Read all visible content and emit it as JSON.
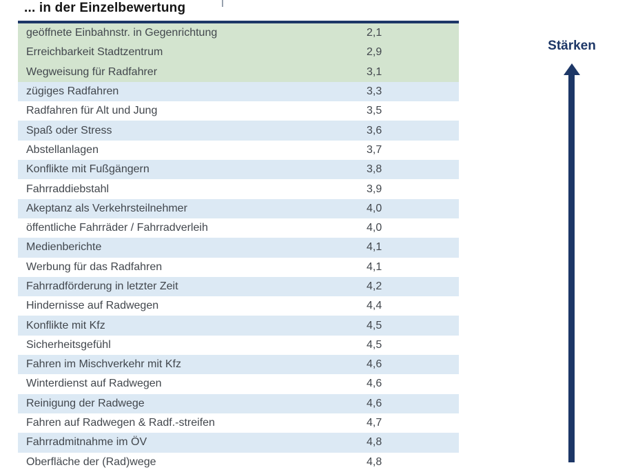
{
  "title": "... in der Einzelbewertung",
  "side_label": "Stärken",
  "colors": {
    "navy": "#1d3767",
    "green_row": "#d3e4cf",
    "blue_row": "#dce9f4",
    "white_row": "#ffffff",
    "row_text": "#42474d",
    "title_text": "#141414"
  },
  "table": {
    "rows": [
      {
        "label": "geöffnete Einbahnstr. in Gegenrichtung",
        "value": "2,1",
        "bg": "green"
      },
      {
        "label": "Erreichbarkeit Stadtzentrum",
        "value": "2,9",
        "bg": "green"
      },
      {
        "label": "Wegweisung für Radfahrer",
        "value": "3,1",
        "bg": "green"
      },
      {
        "label": "zügiges Radfahren",
        "value": "3,3",
        "bg": "blue"
      },
      {
        "label": "Radfahren für Alt und Jung",
        "value": "3,5",
        "bg": "white"
      },
      {
        "label": "Spaß oder Stress",
        "value": "3,6",
        "bg": "blue"
      },
      {
        "label": "Abstellanlagen",
        "value": "3,7",
        "bg": "white"
      },
      {
        "label": "Konflikte mit Fußgängern",
        "value": "3,8",
        "bg": "blue"
      },
      {
        "label": "Fahrraddiebstahl",
        "value": "3,9",
        "bg": "white"
      },
      {
        "label": "Akeptanz als Verkehrsteilnehmer",
        "value": "4,0",
        "bg": "blue"
      },
      {
        "label": "öffentliche Fahrräder / Fahrradverleih",
        "value": "4,0",
        "bg": "white"
      },
      {
        "label": "Medienberichte",
        "value": "4,1",
        "bg": "blue"
      },
      {
        "label": "Werbung für das Radfahren",
        "value": "4,1",
        "bg": "white"
      },
      {
        "label": "Fahrradförderung in letzter Zeit",
        "value": "4,2",
        "bg": "blue"
      },
      {
        "label": "Hindernisse auf Radwegen",
        "value": "4,4",
        "bg": "white"
      },
      {
        "label": "Konflikte mit Kfz",
        "value": "4,5",
        "bg": "blue"
      },
      {
        "label": "Sicherheitsgefühl",
        "value": "4,5",
        "bg": "white"
      },
      {
        "label": "Fahren im Mischverkehr mit Kfz",
        "value": "4,6",
        "bg": "blue"
      },
      {
        "label": "Winterdienst auf Radwegen",
        "value": "4,6",
        "bg": "white"
      },
      {
        "label": "Reinigung der Radwege",
        "value": "4,6",
        "bg": "blue"
      },
      {
        "label": "Fahren auf Radwegen & Radf.-streifen",
        "value": "4,7",
        "bg": "white"
      },
      {
        "label": "Fahrradmitnahme im ÖV",
        "value": "4,8",
        "bg": "blue"
      },
      {
        "label": "Oberfläche der (Rad)wege",
        "value": "4,8",
        "bg": "white"
      }
    ]
  },
  "chart_data": {
    "type": "table",
    "title": "... in der Einzelbewertung",
    "categories": [
      "geöffnete Einbahnstr. in Gegenrichtung",
      "Erreichbarkeit Stadtzentrum",
      "Wegweisung für Radfahrer",
      "zügiges Radfahren",
      "Radfahren für Alt und Jung",
      "Spaß oder Stress",
      "Abstellanlagen",
      "Konflikte mit Fußgängern",
      "Fahrraddiebstahl",
      "Akeptanz als Verkehrsteilnehmer",
      "öffentliche Fahrräder / Fahrradverleih",
      "Medienberichte",
      "Werbung für das Radfahren",
      "Fahrradförderung in letzter Zeit",
      "Hindernisse auf Radwegen",
      "Konflikte mit Kfz",
      "Sicherheitsgefühl",
      "Fahren im Mischverkehr mit Kfz",
      "Winterdienst auf Radwegen",
      "Reinigung der Radwege",
      "Fahren auf Radwegen & Radf.-streifen",
      "Fahrradmitnahme im ÖV",
      "Oberfläche der (Rad)wege"
    ],
    "values": [
      2.1,
      2.9,
      3.1,
      3.3,
      3.5,
      3.6,
      3.7,
      3.8,
      3.9,
      4.0,
      4.0,
      4.1,
      4.1,
      4.2,
      4.4,
      4.5,
      4.5,
      4.6,
      4.6,
      4.6,
      4.7,
      4.8,
      4.8
    ],
    "value_labels": [
      "2,1",
      "2,9",
      "3,1",
      "3,3",
      "3,5",
      "3,6",
      "3,7",
      "3,8",
      "3,9",
      "4,0",
      "4,0",
      "4,1",
      "4,1",
      "4,2",
      "4,4",
      "4,5",
      "4,5",
      "4,6",
      "4,6",
      "4,6",
      "4,7",
      "4,8",
      "4,8"
    ],
    "annotations": [
      {
        "text": "Stärken",
        "position": "right-of-table",
        "arrow": "up"
      }
    ],
    "layout_hints": {
      "sorted": "ascending by value (best scores first)",
      "highlight": "first 3 rows shaded green, remaining rows alternate light blue / white",
      "last_row_partially_cut": true
    }
  }
}
